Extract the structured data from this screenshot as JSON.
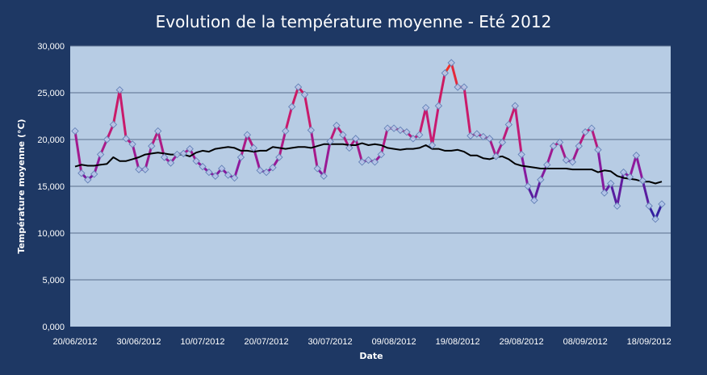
{
  "chart_data": {
    "type": "line",
    "title": "Evolution de la température moyenne - Eté 2012",
    "xlabel": "Date",
    "ylabel": "Température moyenne (°C)",
    "ylim": [
      0,
      30000
    ],
    "y_ticks": [
      "0,000",
      "5,000",
      "10,000",
      "15,000",
      "20,000",
      "25,000",
      "30,000"
    ],
    "x_ticks": [
      "20/06/2012",
      "30/06/2012",
      "10/07/2012",
      "20/07/2012",
      "30/07/2012",
      "09/08/2012",
      "19/08/2012",
      "29/08/2012",
      "08/09/2012",
      "18/09/2012"
    ],
    "grid": true,
    "legend": "none",
    "start_date": "2012-06-20",
    "colors": {
      "background": "#1e3864",
      "plot_area": "#b7cce4",
      "gridline": "#5a6e8c",
      "trend": "#000000",
      "cold": "#2f1fa0",
      "mid": "#8d1a9e",
      "warm": "#c81a70",
      "hot": "#ff3a10",
      "marker_fill": "#b8d0ee",
      "marker_stroke": "#6a84b8"
    },
    "series": [
      {
        "values": [
          20900,
          16400,
          15700,
          16300,
          18400,
          20000,
          21600,
          25300,
          20100,
          19500,
          16800,
          16800,
          19300,
          20900,
          18100,
          17500,
          18400,
          18500,
          19000,
          17700,
          17100,
          16500,
          16100,
          16900,
          16200,
          15900,
          18100,
          20500,
          19100,
          16700,
          16500,
          17000,
          18100,
          20900,
          23500,
          25600,
          24800,
          21000,
          16900,
          16100,
          19800,
          21500,
          20500,
          19100,
          20100,
          17600,
          17800,
          17600,
          18400,
          21200,
          21200,
          21000,
          20800,
          20100,
          20500,
          23400,
          19400,
          23600,
          27100,
          28200,
          25600,
          25600,
          20400,
          20600,
          20300,
          20100,
          18200,
          19700,
          21600,
          23600,
          18400,
          15000,
          13500,
          15700,
          17300,
          19300,
          19700,
          17800,
          17600,
          19300,
          20800,
          21200,
          18900,
          14300,
          15300,
          12900,
          16500,
          16000,
          18300,
          15600,
          12900,
          11500,
          13100
        ]
      },
      {
        "values": [
          17100,
          17300,
          17200,
          17200,
          17300,
          17400,
          18100,
          17700,
          17700,
          17900,
          18100,
          18400,
          18500,
          18600,
          18500,
          18400,
          18400,
          18400,
          18200,
          18600,
          18800,
          18700,
          19000,
          19100,
          19200,
          19100,
          18800,
          18800,
          18700,
          18800,
          18800,
          19200,
          19100,
          19000,
          19100,
          19200,
          19200,
          19100,
          19300,
          19500,
          19500,
          19500,
          19500,
          19400,
          19400,
          19600,
          19400,
          19500,
          19400,
          19100,
          19000,
          18900,
          19000,
          19000,
          19100,
          19400,
          19000,
          19000,
          18800,
          18800,
          18900,
          18700,
          18300,
          18300,
          18000,
          17900,
          18100,
          18200,
          17900,
          17400,
          17200,
          17100,
          17000,
          16900,
          16900,
          16900,
          16900,
          16900,
          16800,
          16800,
          16800,
          16800,
          16500,
          16700,
          16600,
          16100,
          15900,
          15800,
          15700,
          15500,
          15500,
          15300,
          15500
        ]
      }
    ]
  }
}
